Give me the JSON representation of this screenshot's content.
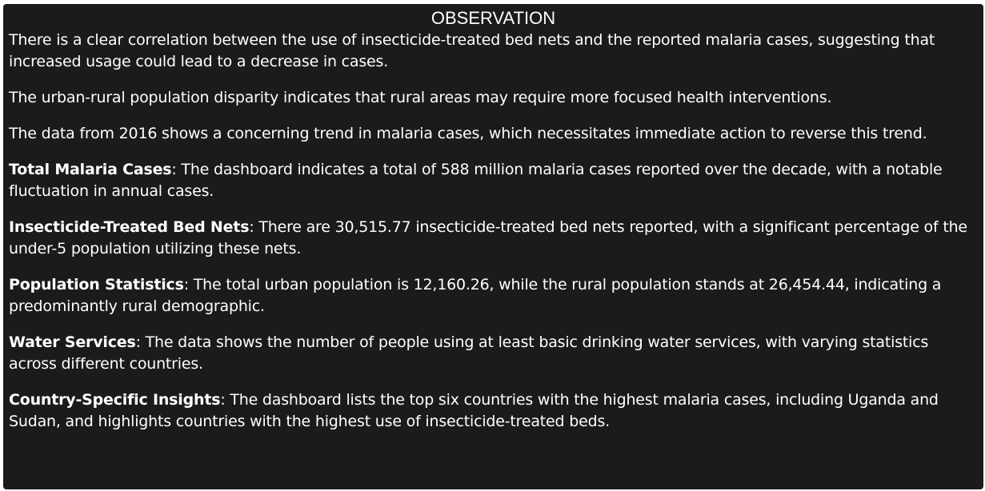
{
  "panel": {
    "title": "OBSERVATION"
  },
  "paragraphs": [
    {
      "heading": "",
      "text": "There is a clear correlation between the use of insecticide-treated bed nets and the reported malaria cases, suggesting that increased usage could lead to a decrease in cases."
    },
    {
      "heading": "",
      "text": "The urban-rural population disparity indicates that rural areas may require more focused health interventions."
    },
    {
      "heading": "",
      "text": "The data from 2016 shows a concerning trend in malaria cases, which necessitates immediate action to reverse this trend."
    },
    {
      "heading": "Total Malaria Cases",
      "text": ": The dashboard indicates a total of 588 million malaria cases reported over the decade, with a notable fluctuation in annual cases."
    },
    {
      "heading": "Insecticide-Treated Bed Nets",
      "text": ": There are 30,515.77 insecticide-treated bed nets reported, with a significant percentage of the under-5 population utilizing these nets."
    },
    {
      "heading": "Population Statistics",
      "text": ": The total urban population is 12,160.26, while the rural population stands at 26,454.44, indicating a predominantly rural demographic."
    },
    {
      "heading": "Water Services",
      "text": ": The data shows the number of people using at least basic drinking water services, with varying statistics across different countries."
    },
    {
      "heading": "Country-Specific Insights",
      "text": ": The dashboard lists the top six countries with the highest malaria cases, including Uganda and Sudan, and highlights countries with the highest use of insecticide-treated beds."
    }
  ]
}
